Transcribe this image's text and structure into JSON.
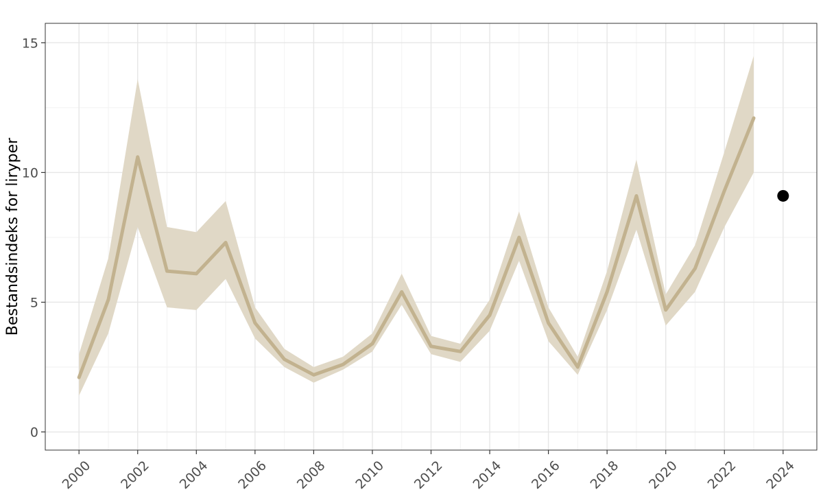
{
  "chart_data": {
    "type": "line",
    "title": "",
    "xlabel": "",
    "ylabel": "Bestandsindeks for liryper",
    "xlim": [
      1998.85,
      2025.15
    ],
    "ylim": [
      -0.7,
      15.75
    ],
    "x_ticks": [
      2000,
      2002,
      2004,
      2006,
      2008,
      2010,
      2012,
      2014,
      2016,
      2018,
      2020,
      2022,
      2024
    ],
    "y_ticks": [
      0,
      5,
      10,
      15
    ],
    "grid": true,
    "legend": "none",
    "series": [
      {
        "x": [
          2000,
          2001,
          2002,
          2003,
          2004,
          2005,
          2006,
          2007,
          2008,
          2009,
          2010,
          2011,
          2012,
          2013,
          2014,
          2015,
          2016,
          2017,
          2018,
          2019,
          2020,
          2021,
          2022,
          2023
        ],
        "y": [
          2.1,
          5.1,
          10.6,
          6.2,
          6.1,
          7.3,
          4.2,
          2.8,
          2.2,
          2.6,
          3.4,
          5.4,
          3.3,
          3.1,
          4.5,
          7.5,
          4.2,
          2.5,
          5.4,
          9.1,
          4.7,
          6.3,
          9.3,
          12.1
        ],
        "lower": [
          1.4,
          3.8,
          7.9,
          4.8,
          4.7,
          5.9,
          3.6,
          2.5,
          1.9,
          2.4,
          3.1,
          4.9,
          3.0,
          2.7,
          3.9,
          6.6,
          3.5,
          2.2,
          4.7,
          7.8,
          4.1,
          5.4,
          7.9,
          10.0
        ],
        "upper": [
          3.0,
          6.7,
          13.6,
          7.9,
          7.7,
          8.9,
          4.8,
          3.2,
          2.5,
          2.9,
          3.8,
          6.1,
          3.7,
          3.4,
          5.1,
          8.5,
          4.8,
          2.9,
          6.2,
          10.5,
          5.3,
          7.2,
          10.8,
          14.5
        ],
        "line_color": "#c2b28f",
        "band_color": "#e0d8c6"
      }
    ],
    "points": [
      {
        "x": 2024,
        "y": 9.1,
        "color": "#000000"
      }
    ]
  }
}
